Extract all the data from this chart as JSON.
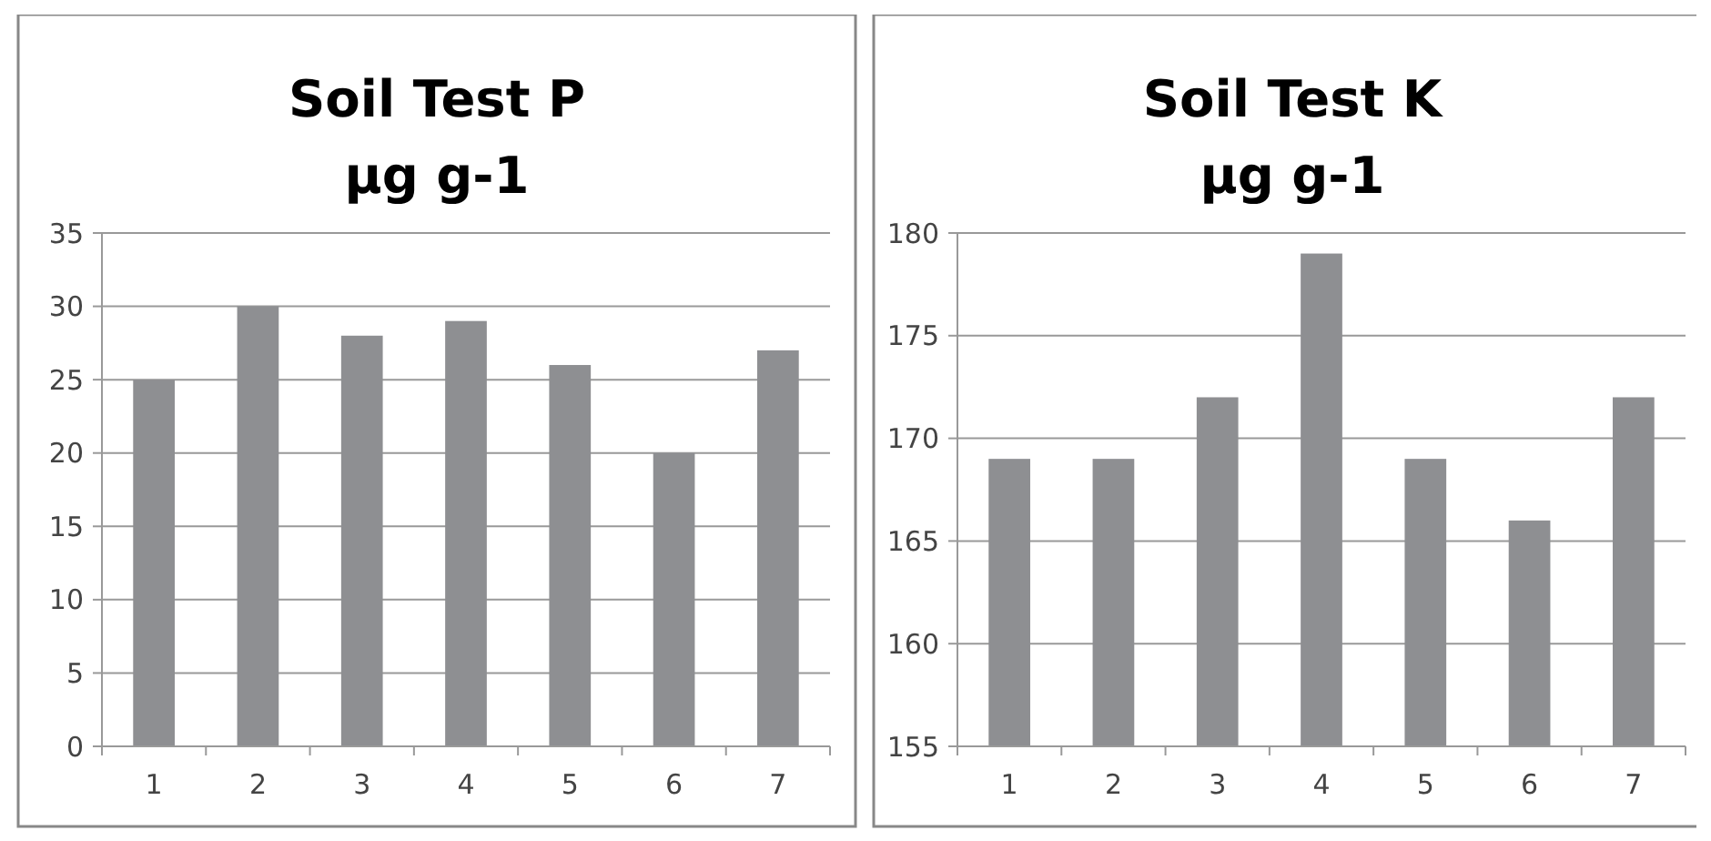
{
  "chart_data": [
    {
      "type": "bar",
      "title": "Soil Test P",
      "subtitle": "µg g-1",
      "categories": [
        "1",
        "2",
        "3",
        "4",
        "5",
        "6",
        "7"
      ],
      "values": [
        25,
        30,
        28,
        29,
        26,
        20,
        27
      ],
      "color": "#8e8f92",
      "ylim": [
        0,
        35
      ],
      "yticks": [
        0,
        5,
        10,
        15,
        20,
        25,
        30,
        35
      ],
      "grid": "y"
    },
    {
      "type": "bar",
      "title": "Soil Test K",
      "subtitle": "µg g-1",
      "categories": [
        "1",
        "2",
        "3",
        "4",
        "5",
        "6",
        "7"
      ],
      "values": [
        169,
        169,
        172,
        179,
        169,
        166,
        172
      ],
      "color": "#8e8f92",
      "ylim": [
        155,
        180
      ],
      "yticks": [
        155,
        160,
        165,
        170,
        175,
        180
      ],
      "grid": "y"
    }
  ]
}
